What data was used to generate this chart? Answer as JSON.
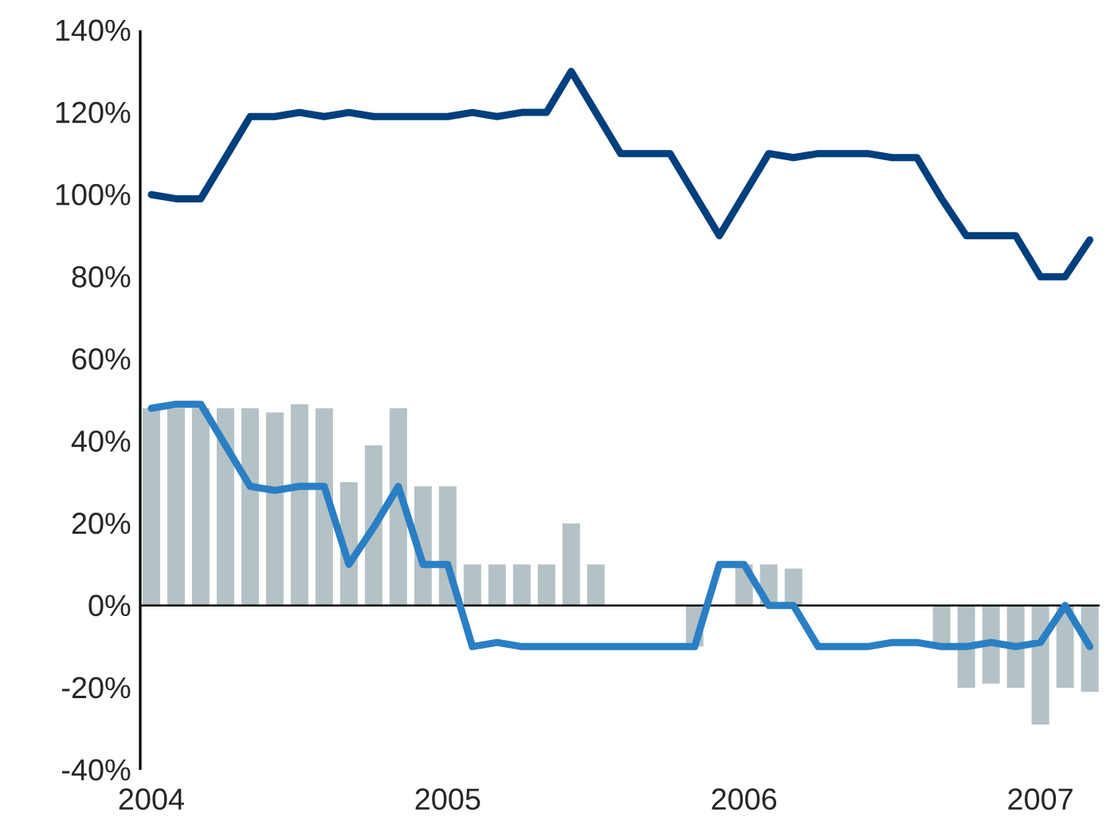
{
  "chart_data": {
    "type": "bar",
    "categories": [
      "2004",
      null,
      null,
      null,
      null,
      null,
      null,
      null,
      null,
      null,
      null,
      null,
      "2005",
      null,
      null,
      null,
      null,
      null,
      null,
      null,
      null,
      null,
      null,
      null,
      "2006",
      null,
      null,
      null,
      null,
      null,
      null,
      null,
      null,
      null,
      null,
      null,
      "2007",
      null,
      null
    ],
    "series": [
      {
        "color": "#b4c2c6",
        "values": [
          48,
          48,
          48,
          48,
          48,
          47,
          49,
          48,
          30,
          39,
          48,
          29,
          29,
          10,
          10,
          10,
          10,
          20,
          10,
          null,
          null,
          null,
          -10,
          null,
          10,
          10,
          9,
          null,
          null,
          null,
          null,
          null,
          -10,
          -20,
          -19,
          -20,
          -29,
          -20,
          -21
        ]
      },
      {
        "type": "line",
        "color": "#003f7d",
        "values": [
          100,
          99,
          99,
          109,
          119,
          119,
          120,
          119,
          120,
          119,
          119,
          119,
          119,
          120,
          119,
          120,
          120,
          130,
          120,
          110,
          110,
          110,
          100,
          90,
          100,
          110,
          109,
          110,
          110,
          110,
          109,
          109,
          99,
          90,
          90,
          90,
          80,
          80,
          89
        ]
      },
      {
        "type": "line",
        "color": "#2a7fc4",
        "values": [
          48,
          49,
          49,
          39,
          29,
          28,
          29,
          29,
          10,
          19,
          29,
          10,
          10,
          -10,
          -9,
          -10,
          -10,
          -10,
          -10,
          -10,
          -10,
          -10,
          -10,
          10,
          10,
          0,
          0,
          -10,
          -10,
          -10,
          -9,
          -9,
          -10,
          -10,
          -9,
          -10,
          -9,
          0,
          -10
        ]
      }
    ],
    "ylim": [
      -40,
      140
    ],
    "yticks": [
      {
        "value": -40,
        "label": "-40%"
      },
      {
        "value": -20,
        "label": "-20%"
      },
      {
        "value": 0,
        "label": "0%"
      },
      {
        "value": 20,
        "label": "20%"
      },
      {
        "value": 40,
        "label": "40%"
      },
      {
        "value": 60,
        "label": "60%"
      },
      {
        "value": 80,
        "label": "80%"
      },
      {
        "value": 100,
        "label": "100%"
      },
      {
        "value": 120,
        "label": "120%"
      },
      {
        "value": 140,
        "label": "140%"
      }
    ],
    "ref_lines": [
      {
        "axis": "y",
        "value": 0,
        "color": "#000000"
      }
    ],
    "marker": "none",
    "line_style": "solid",
    "grid": false
  }
}
